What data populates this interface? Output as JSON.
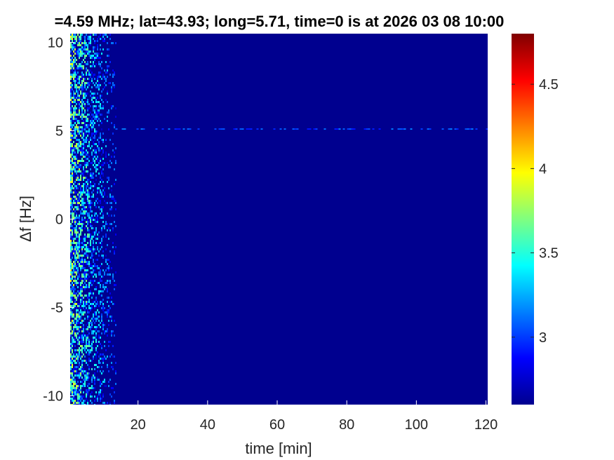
{
  "chart_data": {
    "type": "heatmap",
    "title": "=4.59 MHz;  lat=43.93; long=5.71, time=0 is at 2026 03 08 10:00",
    "xlabel": "time [min]",
    "ylabel": "Δf [Hz]",
    "xlim": [
      0.5,
      120.5
    ],
    "ylim": [
      -10.5,
      10.5
    ],
    "x_ticks": [
      20,
      40,
      60,
      80,
      100,
      120
    ],
    "y_ticks": [
      -10,
      -5,
      0,
      5,
      10
    ],
    "x_tick_labels": [
      "20",
      "40",
      "60",
      "80",
      "100",
      "120"
    ],
    "y_tick_labels": [
      "-10",
      "-5",
      "0",
      "5",
      "10"
    ],
    "colorbar": {
      "colormap": "jet",
      "range": [
        2.6,
        4.8
      ],
      "ticks": [
        3,
        3.5,
        4,
        4.5
      ],
      "tick_labels": [
        "3",
        "3.5",
        "4",
        "4.5"
      ]
    },
    "background_level": 2.62,
    "noise_region_time_min": [
      0.5,
      13.5
    ],
    "line_feature_delta_f_hz": 5.1,
    "grid": false
  }
}
